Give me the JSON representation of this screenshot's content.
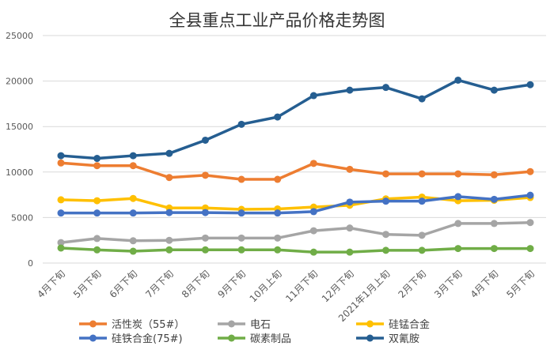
{
  "chart_data": {
    "type": "line",
    "title": "全县重点工业产品价格走势图",
    "xlabel": "",
    "ylabel": "",
    "ylim": [
      0,
      25000
    ],
    "yticks": [
      0,
      5000,
      10000,
      15000,
      20000,
      25000
    ],
    "ytick_labels": [
      "0",
      "5000",
      "10000",
      "15000",
      "20000",
      "25000"
    ],
    "grid": true,
    "legend_position": "bottom",
    "categories": [
      "4月下旬",
      "5月下旬",
      "6月下旬",
      "7月下旬",
      "8月下旬",
      "9月下旬",
      "10月上旬",
      "11月下旬",
      "12月下旬",
      "2021年1月上旬",
      "2月下旬",
      "3月下旬",
      "4月下旬",
      "5月下旬"
    ],
    "series": [
      {
        "name": "活性炭（55#）",
        "color": "#ED7D31",
        "values": [
          11000,
          10700,
          10700,
          9400,
          9650,
          9200,
          9200,
          10950,
          10300,
          9800,
          9800,
          9800,
          9700,
          10050
        ]
      },
      {
        "name": "电石",
        "color": "#A5A5A5",
        "values": [
          2250,
          2700,
          2450,
          2500,
          2750,
          2750,
          2750,
          3550,
          3850,
          3150,
          3050,
          4350,
          4350,
          4450
        ]
      },
      {
        "name": "硅锰合金",
        "color": "#FFC000",
        "values": [
          6950,
          6850,
          7100,
          6050,
          6050,
          5900,
          5950,
          6150,
          6350,
          7050,
          7250,
          6850,
          6900,
          7200
        ]
      },
      {
        "name": "硅铁合金(75#)",
        "color": "#4472C4",
        "values": [
          5500,
          5500,
          5500,
          5550,
          5550,
          5500,
          5500,
          5650,
          6700,
          6800,
          6800,
          7300,
          7000,
          7450
        ]
      },
      {
        "name": "碳素制品",
        "color": "#70AD47",
        "values": [
          1650,
          1450,
          1300,
          1450,
          1450,
          1450,
          1450,
          1200,
          1200,
          1400,
          1400,
          1600,
          1600,
          1600
        ]
      },
      {
        "name": "双氰胺",
        "color": "#255E91",
        "values": [
          11800,
          11500,
          11800,
          12050,
          13500,
          15250,
          16050,
          18400,
          19000,
          19300,
          18050,
          20100,
          19000,
          19600
        ]
      }
    ]
  }
}
